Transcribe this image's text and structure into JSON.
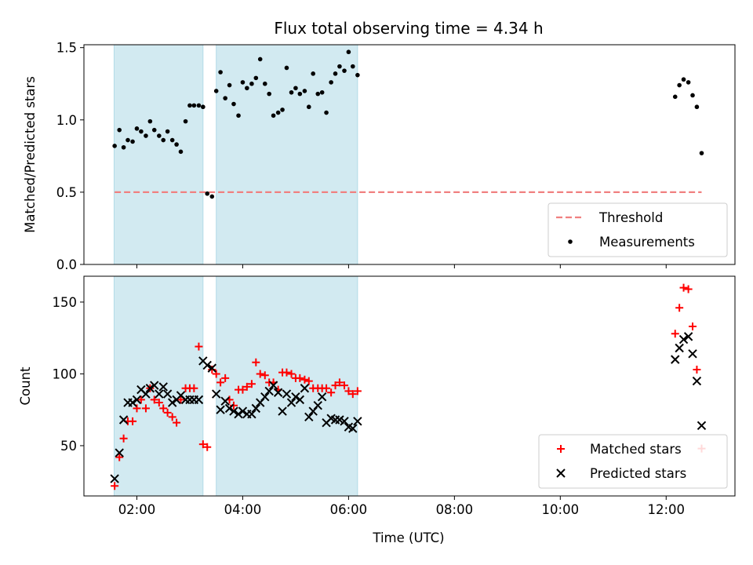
{
  "chart_data": {
    "title": "Flux total observing time = 4.34 h",
    "xlabel": "Time (UTC)",
    "x_unit": "hours since 00:00 UTC",
    "xlim": [
      1.0,
      13.3
    ],
    "xticks": [
      {
        "value": 2,
        "label": "02:00"
      },
      {
        "value": 4,
        "label": "04:00"
      },
      {
        "value": 6,
        "label": "06:00"
      },
      {
        "value": 8,
        "label": "08:00"
      },
      {
        "value": 10,
        "label": "10:00"
      },
      {
        "value": 12,
        "label": "12:00"
      }
    ],
    "shaded_spans": [
      [
        1.57,
        3.25
      ],
      [
        3.5,
        6.17
      ]
    ],
    "shade_color": "#add8e6",
    "panels": [
      {
        "id": "ratio",
        "type": "scatter",
        "ylabel": "Matched/Predicted stars",
        "ylim": [
          0.0,
          1.52
        ],
        "yticks": [
          {
            "value": 0.0,
            "label": "0.0"
          },
          {
            "value": 0.5,
            "label": "0.5"
          },
          {
            "value": 1.0,
            "label": "1.0"
          },
          {
            "value": 1.5,
            "label": "1.5"
          }
        ],
        "threshold": {
          "name": "Threshold",
          "value": 0.5,
          "x_range": [
            1.58,
            12.67
          ],
          "color": "#f08080"
        },
        "legend": {
          "position": "lower-right",
          "entries": [
            "Threshold",
            "Measurements"
          ]
        },
        "series": [
          {
            "name": "Measurements",
            "marker": "dot",
            "color": "#000000",
            "x": [
              1.58,
              1.67,
              1.75,
              1.83,
              1.92,
              2.0,
              2.08,
              2.17,
              2.25,
              2.33,
              2.42,
              2.5,
              2.58,
              2.67,
              2.75,
              2.83,
              2.92,
              3.0,
              3.08,
              3.17,
              3.25,
              3.33,
              3.42,
              3.5,
              3.58,
              3.67,
              3.75,
              3.83,
              3.92,
              4.0,
              4.08,
              4.17,
              4.25,
              4.33,
              4.42,
              4.5,
              4.58,
              4.67,
              4.75,
              4.83,
              4.92,
              5.0,
              5.08,
              5.17,
              5.25,
              5.33,
              5.42,
              5.5,
              5.58,
              5.67,
              5.75,
              5.83,
              5.92,
              6.0,
              6.08,
              6.17,
              12.17,
              12.25,
              12.33,
              12.42,
              12.5,
              12.58,
              12.67
            ],
            "y": [
              0.82,
              0.93,
              0.81,
              0.86,
              0.85,
              0.94,
              0.92,
              0.89,
              0.99,
              0.93,
              0.89,
              0.86,
              0.92,
              0.86,
              0.83,
              0.78,
              0.99,
              1.1,
              1.1,
              1.1,
              1.09,
              0.49,
              0.47,
              1.2,
              1.33,
              1.15,
              1.24,
              1.11,
              1.03,
              1.26,
              1.22,
              1.25,
              1.29,
              1.42,
              1.25,
              1.18,
              1.03,
              1.05,
              1.07,
              1.36,
              1.19,
              1.22,
              1.18,
              1.2,
              1.09,
              1.32,
              1.18,
              1.19,
              1.05,
              1.26,
              1.32,
              1.37,
              1.34,
              1.47,
              1.37,
              1.31,
              1.16,
              1.24,
              1.28,
              1.26,
              1.17,
              1.09,
              0.77
            ]
          }
        ]
      },
      {
        "id": "count",
        "type": "scatter",
        "ylabel": "Count",
        "ylim": [
          15,
          168
        ],
        "yticks": [
          {
            "value": 50,
            "label": "50"
          },
          {
            "value": 100,
            "label": "100"
          },
          {
            "value": 150,
            "label": "150"
          }
        ],
        "legend": {
          "position": "lower-right",
          "entries": [
            "Matched stars",
            "Predicted stars"
          ]
        },
        "series": [
          {
            "name": "Matched stars",
            "marker": "plus",
            "color": "#ff0000",
            "x": [
              1.58,
              1.67,
              1.75,
              1.83,
              1.92,
              2.0,
              2.08,
              2.17,
              2.25,
              2.33,
              2.42,
              2.5,
              2.58,
              2.67,
              2.75,
              2.83,
              2.92,
              3.0,
              3.08,
              3.17,
              3.25,
              3.33,
              3.42,
              3.5,
              3.58,
              3.67,
              3.75,
              3.83,
              3.92,
              4.0,
              4.08,
              4.17,
              4.25,
              4.33,
              4.42,
              4.5,
              4.58,
              4.67,
              4.75,
              4.83,
              4.92,
              5.0,
              5.08,
              5.17,
              5.25,
              5.33,
              5.42,
              5.5,
              5.58,
              5.67,
              5.75,
              5.83,
              5.92,
              6.0,
              6.08,
              6.17,
              12.17,
              12.25,
              12.33,
              12.42,
              12.5,
              12.58,
              12.67
            ],
            "y": [
              22,
              42,
              55,
              67,
              67,
              76,
              82,
              76,
              90,
              82,
              80,
              76,
              73,
              70,
              66,
              82,
              90,
              90,
              90,
              119,
              51,
              49,
              103,
              100,
              94,
              97,
              82,
              78,
              89,
              89,
              91,
              93,
              108,
              100,
              99,
              94,
              94,
              89,
              101,
              101,
              100,
              97,
              97,
              96,
              95,
              90,
              90,
              90,
              90,
              87,
              92,
              94,
              92,
              88,
              86,
              88,
              128,
              146,
              160,
              159,
              133,
              103,
              48
            ]
          },
          {
            "name": "Predicted stars",
            "marker": "x",
            "color": "#000000",
            "x": [
              1.58,
              1.67,
              1.75,
              1.83,
              1.92,
              2.0,
              2.08,
              2.17,
              2.25,
              2.33,
              2.42,
              2.5,
              2.58,
              2.67,
              2.75,
              2.83,
              2.92,
              3.0,
              3.08,
              3.17,
              3.25,
              3.33,
              3.42,
              3.5,
              3.58,
              3.67,
              3.75,
              3.83,
              3.92,
              4.0,
              4.08,
              4.17,
              4.25,
              4.33,
              4.42,
              4.5,
              4.58,
              4.67,
              4.75,
              4.83,
              4.92,
              5.0,
              5.08,
              5.17,
              5.25,
              5.33,
              5.42,
              5.5,
              5.58,
              5.67,
              5.75,
              5.83,
              5.92,
              6.0,
              6.08,
              6.17,
              12.17,
              12.25,
              12.33,
              12.42,
              12.5,
              12.58,
              12.67
            ],
            "y": [
              27,
              45,
              68,
              80,
              80,
              82,
              89,
              86,
              90,
              92,
              86,
              91,
              86,
              80,
              82,
              85,
              82,
              82,
              82,
              82,
              109,
              106,
              104,
              86,
              75,
              81,
              76,
              74,
              72,
              74,
              72,
              72,
              76,
              80,
              84,
              88,
              92,
              87,
              74,
              86,
              80,
              84,
              82,
              90,
              70,
              74,
              78,
              84,
              66,
              69,
              68,
              68,
              67,
              63,
              62,
              67,
              110,
              118,
              124,
              126,
              114,
              95,
              64
            ]
          }
        ]
      }
    ]
  }
}
